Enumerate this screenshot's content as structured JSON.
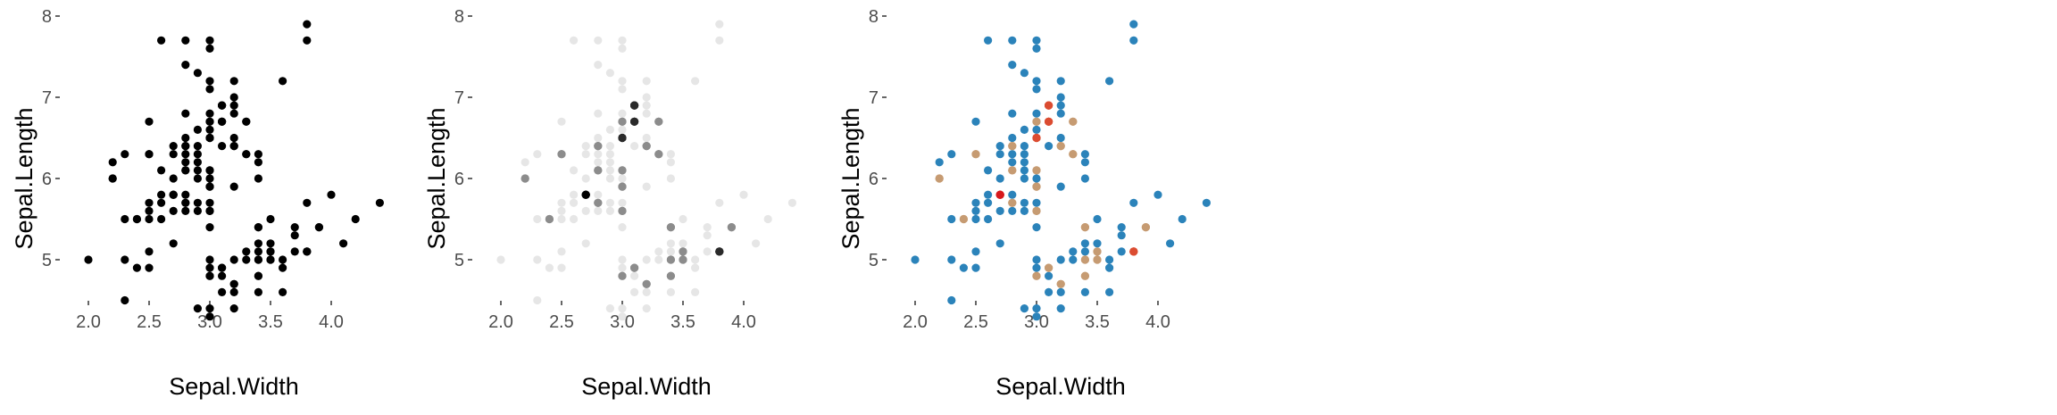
{
  "chart_data": [
    {
      "type": "scatter",
      "panel": "panel-1",
      "xlabel": "Sepal.Width",
      "ylabel": "Sepal.Length",
      "xlim": [
        1.9,
        4.4
      ],
      "ylim": [
        4.3,
        7.9
      ],
      "xticks": [
        "2.0",
        "2.5",
        "3.0",
        "3.5",
        "4.0"
      ],
      "yticks": [
        "5",
        "6",
        "7",
        "8"
      ],
      "grid": false,
      "legend": "none",
      "color_encoding": "single",
      "colors": {
        "point": "#000000"
      }
    },
    {
      "type": "scatter",
      "panel": "panel-2",
      "xlabel": "Sepal.Width",
      "ylabel": "Sepal.Length",
      "xlim": [
        1.9,
        4.4
      ],
      "ylim": [
        4.3,
        7.9
      ],
      "xticks": [
        "2.0",
        "2.5",
        "3.0",
        "3.5",
        "4.0"
      ],
      "yticks": [
        "5",
        "6",
        "7",
        "8"
      ],
      "grid": false,
      "legend": "none",
      "color_encoding": "point density, light gray (low) to black (high)",
      "colors": {
        "low": "#e6e6e6",
        "mid": "#8c8c8c",
        "high": "#000000"
      }
    },
    {
      "type": "scatter",
      "panel": "panel-3",
      "xlabel": "Sepal.Width",
      "ylabel": "Sepal.Length",
      "xlim": [
        1.9,
        4.4
      ],
      "ylim": [
        4.3,
        7.9
      ],
      "xticks": [
        "2.0",
        "2.5",
        "3.0",
        "3.5",
        "4.0"
      ],
      "yticks": [
        "5",
        "6",
        "7",
        "8"
      ],
      "grid": false,
      "legend": "none",
      "color_encoding": "point density, blue (low) through gray-tan and orange to red (high)",
      "colors": {
        "low": "#2b83ba",
        "mid": "#abab9a",
        "mid_high": "#e08a4a",
        "high": "#d7191c"
      }
    }
  ],
  "points": [
    [
      3.5,
      5.1
    ],
    [
      3.0,
      4.9
    ],
    [
      3.2,
      4.7
    ],
    [
      3.1,
      4.6
    ],
    [
      3.6,
      5.0
    ],
    [
      3.9,
      5.4
    ],
    [
      3.4,
      4.6
    ],
    [
      3.4,
      5.0
    ],
    [
      2.9,
      4.4
    ],
    [
      3.1,
      4.9
    ],
    [
      3.7,
      5.4
    ],
    [
      3.4,
      4.8
    ],
    [
      3.0,
      4.8
    ],
    [
      3.0,
      4.3
    ],
    [
      4.0,
      5.8
    ],
    [
      4.4,
      5.7
    ],
    [
      3.9,
      5.4
    ],
    [
      3.5,
      5.1
    ],
    [
      3.8,
      5.7
    ],
    [
      3.8,
      5.1
    ],
    [
      3.4,
      5.4
    ],
    [
      3.7,
      5.1
    ],
    [
      3.6,
      4.6
    ],
    [
      3.3,
      5.1
    ],
    [
      3.4,
      4.8
    ],
    [
      3.0,
      5.0
    ],
    [
      3.4,
      5.0
    ],
    [
      3.5,
      5.2
    ],
    [
      3.4,
      5.2
    ],
    [
      3.2,
      4.7
    ],
    [
      3.1,
      4.8
    ],
    [
      3.4,
      5.4
    ],
    [
      4.1,
      5.2
    ],
    [
      4.2,
      5.5
    ],
    [
      3.1,
      4.9
    ],
    [
      3.2,
      5.0
    ],
    [
      3.5,
      5.5
    ],
    [
      3.6,
      4.9
    ],
    [
      3.0,
      4.4
    ],
    [
      3.4,
      5.1
    ],
    [
      3.5,
      5.0
    ],
    [
      2.3,
      4.5
    ],
    [
      3.2,
      4.4
    ],
    [
      3.5,
      5.0
    ],
    [
      3.8,
      5.1
    ],
    [
      3.0,
      4.8
    ],
    [
      3.8,
      5.1
    ],
    [
      3.2,
      4.6
    ],
    [
      3.7,
      5.3
    ],
    [
      3.3,
      5.0
    ],
    [
      3.2,
      7.0
    ],
    [
      3.2,
      6.4
    ],
    [
      3.1,
      6.9
    ],
    [
      2.3,
      5.5
    ],
    [
      2.8,
      6.5
    ],
    [
      2.8,
      5.7
    ],
    [
      3.3,
      6.3
    ],
    [
      2.4,
      4.9
    ],
    [
      2.9,
      6.6
    ],
    [
      2.7,
      5.2
    ],
    [
      2.0,
      5.0
    ],
    [
      3.0,
      5.9
    ],
    [
      2.2,
      6.0
    ],
    [
      2.9,
      6.1
    ],
    [
      2.9,
      5.6
    ],
    [
      3.1,
      6.7
    ],
    [
      3.0,
      5.6
    ],
    [
      2.7,
      5.8
    ],
    [
      2.2,
      6.2
    ],
    [
      2.5,
      5.6
    ],
    [
      3.2,
      5.9
    ],
    [
      2.8,
      6.1
    ],
    [
      2.5,
      6.3
    ],
    [
      2.8,
      6.1
    ],
    [
      2.9,
      6.4
    ],
    [
      3.0,
      6.6
    ],
    [
      2.8,
      6.8
    ],
    [
      3.0,
      6.7
    ],
    [
      2.9,
      6.0
    ],
    [
      2.6,
      5.7
    ],
    [
      2.4,
      5.5
    ],
    [
      2.4,
      5.5
    ],
    [
      2.7,
      5.8
    ],
    [
      2.7,
      6.0
    ],
    [
      3.0,
      5.4
    ],
    [
      3.4,
      6.0
    ],
    [
      3.1,
      6.7
    ],
    [
      2.3,
      6.3
    ],
    [
      3.0,
      5.6
    ],
    [
      2.5,
      5.5
    ],
    [
      2.6,
      5.5
    ],
    [
      3.0,
      6.1
    ],
    [
      2.6,
      5.8
    ],
    [
      2.3,
      5.0
    ],
    [
      2.7,
      5.6
    ],
    [
      3.0,
      5.7
    ],
    [
      2.9,
      5.7
    ],
    [
      2.9,
      6.2
    ],
    [
      2.5,
      5.1
    ],
    [
      2.8,
      5.7
    ],
    [
      3.3,
      6.3
    ],
    [
      2.7,
      5.8
    ],
    [
      3.0,
      7.1
    ],
    [
      2.9,
      6.3
    ],
    [
      3.0,
      6.5
    ],
    [
      3.0,
      7.6
    ],
    [
      2.5,
      4.9
    ],
    [
      2.9,
      7.3
    ],
    [
      2.5,
      6.7
    ],
    [
      3.6,
      7.2
    ],
    [
      3.2,
      6.5
    ],
    [
      2.7,
      6.4
    ],
    [
      3.0,
      6.8
    ],
    [
      2.5,
      5.7
    ],
    [
      2.8,
      5.8
    ],
    [
      3.2,
      6.4
    ],
    [
      3.0,
      6.5
    ],
    [
      3.8,
      7.7
    ],
    [
      2.6,
      7.7
    ],
    [
      2.2,
      6.0
    ],
    [
      3.2,
      6.9
    ],
    [
      2.8,
      5.6
    ],
    [
      2.8,
      7.7
    ],
    [
      2.7,
      6.3
    ],
    [
      3.3,
      6.7
    ],
    [
      3.2,
      7.2
    ],
    [
      2.8,
      6.2
    ],
    [
      3.0,
      6.1
    ],
    [
      2.8,
      6.4
    ],
    [
      3.0,
      7.2
    ],
    [
      2.8,
      7.4
    ],
    [
      3.8,
      7.9
    ],
    [
      2.8,
      6.4
    ],
    [
      2.8,
      6.3
    ],
    [
      2.6,
      6.1
    ],
    [
      3.0,
      7.7
    ],
    [
      3.4,
      6.3
    ],
    [
      3.1,
      6.4
    ],
    [
      3.0,
      6.0
    ],
    [
      3.1,
      6.9
    ],
    [
      3.1,
      6.7
    ],
    [
      3.1,
      6.9
    ],
    [
      2.7,
      5.8
    ],
    [
      3.2,
      6.8
    ],
    [
      3.3,
      6.7
    ],
    [
      3.0,
      6.7
    ],
    [
      2.5,
      6.3
    ],
    [
      3.0,
      6.5
    ],
    [
      3.4,
      6.2
    ],
    [
      3.0,
      5.9
    ]
  ]
}
